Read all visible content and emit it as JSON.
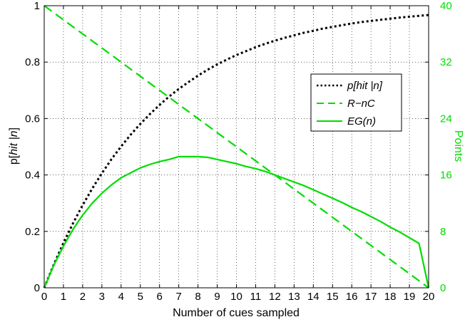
{
  "chart_data": {
    "type": "line",
    "title": "",
    "xlabel": "Number of cues sampled",
    "ylabel_left": {
      "pre": "p[",
      "italic": "hit |n",
      "post": "]"
    },
    "ylabel_right": "Points",
    "xlim": [
      0,
      20
    ],
    "ylim_left": [
      0,
      1
    ],
    "ylim_right": [
      0,
      40
    ],
    "x_ticks": [
      "0",
      "1",
      "2",
      "3",
      "4",
      "5",
      "6",
      "7",
      "8",
      "9",
      "10",
      "11",
      "12",
      "13",
      "14",
      "15",
      "16",
      "17",
      "18",
      "19",
      "20"
    ],
    "y_left_ticks": [
      "0",
      "0.2",
      "0.4",
      "0.6",
      "0.8",
      "1"
    ],
    "y_right_ticks": [
      "0",
      "8",
      "16",
      "24",
      "32",
      "40"
    ],
    "grid": true,
    "legend_position": "right",
    "colors": {
      "black_series": "#000000",
      "green": "#00dd00",
      "axis": "#000000"
    },
    "series": [
      {
        "name": "p[hit |n]",
        "axis": "left",
        "style": "dotted",
        "color": "#000000",
        "x": [
          0,
          0.5,
          1,
          1.5,
          2,
          2.5,
          3,
          3.5,
          4,
          4.5,
          5,
          5.5,
          6,
          6.5,
          7,
          7.5,
          8,
          8.5,
          9,
          9.5,
          10,
          10.5,
          11,
          11.5,
          12,
          12.5,
          13,
          13.5,
          14,
          14.5,
          15,
          15.5,
          16,
          16.5,
          17,
          17.5,
          18,
          18.5,
          19,
          19.5,
          20
        ],
        "values": [
          0,
          0.083,
          0.159,
          0.229,
          0.293,
          0.352,
          0.406,
          0.456,
          0.501,
          0.543,
          0.581,
          0.616,
          0.648,
          0.678,
          0.705,
          0.729,
          0.752,
          0.773,
          0.792,
          0.809,
          0.825,
          0.839,
          0.853,
          0.865,
          0.876,
          0.886,
          0.895,
          0.904,
          0.911,
          0.919,
          0.925,
          0.931,
          0.937,
          0.942,
          0.946,
          0.95,
          0.954,
          0.958,
          0.961,
          0.964,
          0.967
        ]
      },
      {
        "name": "R−nC",
        "axis": "right",
        "style": "dashed",
        "color": "#00dd00",
        "x": [
          0,
          20
        ],
        "values": [
          40,
          0
        ]
      },
      {
        "name": "EG(n)",
        "axis": "right",
        "style": "solid",
        "color": "#00dd00",
        "x": [
          0,
          0.5,
          1,
          1.5,
          2,
          2.5,
          3,
          3.5,
          4,
          4.5,
          5,
          5.5,
          6,
          6.5,
          7,
          7.5,
          8,
          8.5,
          9,
          9.5,
          10,
          10.5,
          11,
          11.5,
          12,
          12.5,
          13,
          13.5,
          14,
          14.5,
          15,
          15.5,
          16,
          16.5,
          17,
          17.5,
          18,
          18.5,
          19,
          19.5,
          20
        ],
        "values": [
          0,
          3.2,
          5.9,
          8.3,
          10.3,
          12.0,
          13.4,
          14.6,
          15.6,
          16.3,
          17.0,
          17.5,
          17.9,
          18.2,
          18.6,
          18.6,
          18.6,
          18.5,
          18.2,
          17.9,
          17.6,
          17.2,
          16.9,
          16.5,
          16.0,
          15.5,
          15.0,
          14.5,
          13.9,
          13.3,
          12.7,
          12.1,
          11.4,
          10.8,
          10.1,
          9.4,
          8.6,
          7.9,
          7.1,
          6.3,
          0
        ]
      }
    ]
  }
}
